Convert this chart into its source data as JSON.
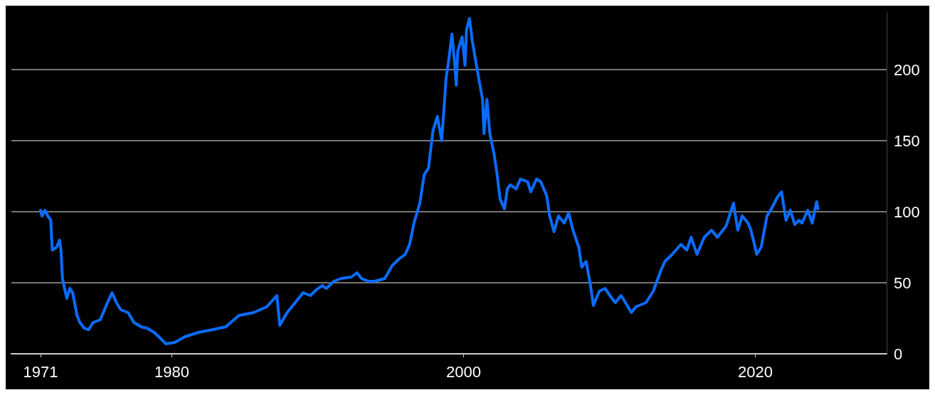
{
  "chart_data": {
    "type": "line",
    "x": [
      1971.0,
      1971.1,
      1971.3,
      1971.5,
      1971.7,
      1971.8,
      1972.1,
      1972.3,
      1972.4,
      1972.5,
      1972.8,
      1973.0,
      1973.2,
      1973.5,
      1973.7,
      1974.0,
      1974.3,
      1974.6,
      1975.1,
      1975.5,
      1975.9,
      1976.2,
      1976.5,
      1977.0,
      1977.4,
      1977.9,
      1978.3,
      1978.8,
      1979.3,
      1979.6,
      1980.2,
      1980.9,
      1981.8,
      1982.8,
      1983.7,
      1984.6,
      1985.6,
      1986.5,
      1987.2,
      1987.4,
      1987.9,
      1988.3,
      1989.0,
      1989.5,
      1989.9,
      1990.3,
      1990.6,
      1991.1,
      1991.6,
      1992.3,
      1992.7,
      1993.0,
      1993.5,
      1993.9,
      1994.6,
      1995.1,
      1995.6,
      1996.0,
      1996.3,
      1996.6,
      1997.0,
      1997.3,
      1997.6,
      1997.9,
      1998.2,
      1998.5,
      1998.7,
      1998.8,
      1999.0,
      1999.2,
      1999.4,
      1999.5,
      1999.6,
      1999.9,
      2000.1,
      2000.2,
      2000.4,
      2000.6,
      2000.8,
      2001.0,
      2001.3,
      2001.4,
      2001.6,
      2001.8,
      2002.1,
      2002.3,
      2002.5,
      2002.8,
      2003.0,
      2003.2,
      2003.6,
      2003.9,
      2004.4,
      2004.6,
      2005.0,
      2005.3,
      2005.7,
      2005.9,
      2006.2,
      2006.5,
      2006.9,
      2007.2,
      2007.5,
      2007.9,
      2008.1,
      2008.4,
      2008.7,
      2008.9,
      2009.3,
      2009.7,
      2010.1,
      2010.4,
      2010.8,
      2011.1,
      2011.5,
      2011.8,
      2012.5,
      2013.0,
      2013.5,
      2013.8,
      2014.3,
      2014.9,
      2015.3,
      2015.6,
      2016.0,
      2016.5,
      2017.0,
      2017.4,
      2018.0,
      2018.5,
      2018.8,
      2019.1,
      2019.5,
      2019.7,
      2020.1,
      2020.4,
      2020.8,
      2021.1,
      2021.5,
      2021.8,
      2022.1,
      2022.4,
      2022.7,
      2023.0,
      2023.2,
      2023.6,
      2023.9,
      2024.2,
      2024.3
    ],
    "series": [
      {
        "color": "#0a6cff",
        "values": [
          101,
          97,
          101,
          97,
          94,
          73,
          75,
          80,
          73,
          53,
          39,
          46,
          43,
          27,
          22,
          18,
          17,
          22,
          24,
          34,
          43,
          36,
          31,
          29,
          22,
          19,
          18,
          15,
          10,
          7,
          8,
          12,
          15,
          17,
          19,
          27,
          29,
          33,
          41,
          20,
          29,
          34,
          43,
          41,
          45,
          48,
          46,
          51,
          53,
          54,
          57,
          53,
          51,
          51,
          53,
          62,
          67,
          70,
          77,
          92,
          106,
          126,
          131,
          157,
          167,
          150,
          179,
          194,
          208,
          225,
          203,
          189,
          213,
          223,
          203,
          228,
          236,
          220,
          208,
          196,
          179,
          155,
          179,
          155,
          140,
          126,
          109,
          102,
          116,
          119,
          116,
          123,
          121,
          114,
          123,
          121,
          111,
          97,
          86,
          97,
          92,
          99,
          87,
          75,
          61,
          65,
          48,
          34,
          44,
          46,
          40,
          36,
          41,
          36,
          29,
          33,
          36,
          44,
          58,
          65,
          70,
          77,
          73,
          82,
          70,
          82,
          87,
          82,
          90,
          106,
          87,
          97,
          92,
          87,
          70,
          75,
          97,
          102,
          110,
          114,
          94,
          101,
          91,
          94,
          92,
          101,
          92,
          107,
          102
        ]
      }
    ],
    "xlim": [
      1969,
      2029
    ],
    "xticks": [
      1971,
      1980,
      2000,
      2020
    ],
    "ylim": [
      0,
      240
    ],
    "yticks": [
      0,
      50,
      100,
      150,
      200
    ],
    "grid": "y",
    "marker": "none",
    "line_style": "solid"
  }
}
